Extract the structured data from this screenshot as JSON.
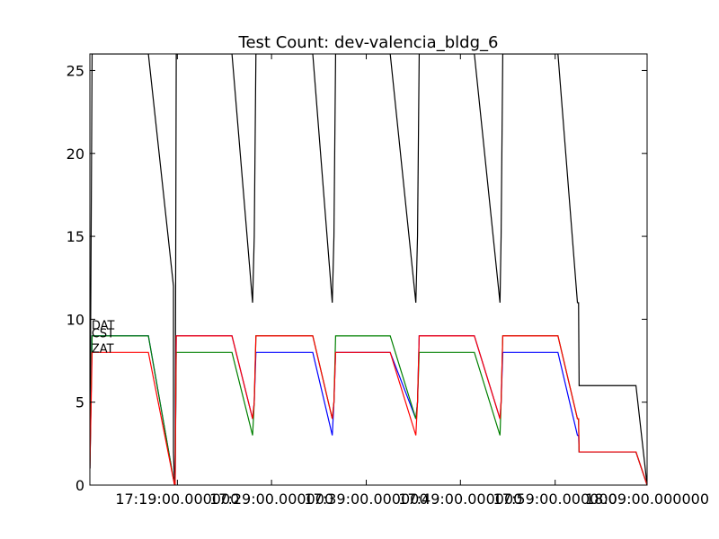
{
  "chart_data": {
    "type": "line",
    "title": "Test Count: dev-valencia_bldg_6",
    "xlabel": "",
    "ylabel": "",
    "xlim": [
      0,
      1
    ],
    "ylim": [
      0,
      26
    ],
    "yticks": [
      0,
      5,
      10,
      15,
      20,
      25
    ],
    "xtick_positions": [
      0.157,
      0.326,
      0.496,
      0.665,
      0.835,
      1.0
    ],
    "xtick_labels": [
      "17:19:00.000000",
      "17:29:00.000000",
      "17:39:00.000000",
      "17:49:00.000000",
      "17:59:00.000000",
      "18:09:00.000000"
    ],
    "grid": false,
    "annotations": [
      {
        "text": "DAT",
        "x": 0.003,
        "y": 9.4
      },
      {
        "text": "CST",
        "x": 0.003,
        "y": 8.9
      },
      {
        "text": "ZAT",
        "x": 0.003,
        "y": 8.0
      }
    ],
    "series": [
      {
        "color": "#000000",
        "points": [
          [
            0,
            1
          ],
          [
            0.004,
            26
          ],
          [
            0.105,
            26
          ],
          [
            0.15,
            12
          ],
          [
            0.15,
            2
          ],
          [
            0.152,
            0
          ],
          [
            0.153,
            0
          ],
          [
            0.155,
            26
          ],
          [
            0.255,
            26
          ],
          [
            0.292,
            11
          ],
          [
            0.295,
            15
          ],
          [
            0.298,
            26
          ],
          [
            0.4,
            26
          ],
          [
            0.435,
            11
          ],
          [
            0.438,
            15
          ],
          [
            0.441,
            26
          ],
          [
            0.539,
            26
          ],
          [
            0.585,
            11
          ],
          [
            0.588,
            15
          ],
          [
            0.591,
            26
          ],
          [
            0.69,
            26
          ],
          [
            0.736,
            11
          ],
          [
            0.738,
            15
          ],
          [
            0.741,
            26
          ],
          [
            0.84,
            26
          ],
          [
            0.875,
            11
          ],
          [
            0.877,
            11
          ],
          [
            0.878,
            6
          ],
          [
            0.98,
            6
          ],
          [
            1.0,
            0
          ]
        ]
      },
      {
        "color": "#0000ff",
        "points": [
          [
            0,
            1
          ],
          [
            0.004,
            9
          ],
          [
            0.105,
            9
          ],
          [
            0.152,
            0
          ],
          [
            0.153,
            0
          ],
          [
            0.155,
            9
          ],
          [
            0.255,
            9
          ],
          [
            0.292,
            4
          ],
          [
            0.295,
            5
          ],
          [
            0.298,
            8
          ],
          [
            0.4,
            8
          ],
          [
            0.435,
            3
          ],
          [
            0.438,
            5
          ],
          [
            0.441,
            8
          ],
          [
            0.539,
            8
          ],
          [
            0.585,
            4
          ],
          [
            0.588,
            5
          ],
          [
            0.591,
            9
          ],
          [
            0.69,
            9
          ],
          [
            0.736,
            4
          ],
          [
            0.738,
            5
          ],
          [
            0.741,
            8
          ],
          [
            0.84,
            8
          ],
          [
            0.875,
            3
          ],
          [
            0.877,
            3
          ],
          [
            0.878,
            2
          ],
          [
            0.98,
            2
          ],
          [
            1.0,
            0
          ]
        ]
      },
      {
        "color": "#008000",
        "points": [
          [
            0,
            1
          ],
          [
            0.004,
            9
          ],
          [
            0.105,
            9
          ],
          [
            0.152,
            0
          ],
          [
            0.153,
            0
          ],
          [
            0.155,
            8
          ],
          [
            0.255,
            8
          ],
          [
            0.292,
            3
          ],
          [
            0.295,
            5
          ],
          [
            0.298,
            9
          ],
          [
            0.4,
            9
          ],
          [
            0.435,
            4
          ],
          [
            0.438,
            5
          ],
          [
            0.441,
            9
          ],
          [
            0.539,
            9
          ],
          [
            0.585,
            4
          ],
          [
            0.588,
            5
          ],
          [
            0.591,
            8
          ],
          [
            0.69,
            8
          ],
          [
            0.736,
            3
          ],
          [
            0.738,
            5
          ],
          [
            0.741,
            9
          ],
          [
            0.84,
            9
          ],
          [
            0.875,
            4
          ],
          [
            0.877,
            4
          ],
          [
            0.878,
            2
          ],
          [
            0.98,
            2
          ],
          [
            1.0,
            0
          ]
        ]
      },
      {
        "color": "#ff0000",
        "points": [
          [
            0,
            1
          ],
          [
            0.004,
            8
          ],
          [
            0.105,
            8
          ],
          [
            0.152,
            0
          ],
          [
            0.153,
            0
          ],
          [
            0.155,
            9
          ],
          [
            0.255,
            9
          ],
          [
            0.292,
            4
          ],
          [
            0.295,
            5
          ],
          [
            0.298,
            9
          ],
          [
            0.4,
            9
          ],
          [
            0.435,
            4
          ],
          [
            0.438,
            5
          ],
          [
            0.441,
            8
          ],
          [
            0.539,
            8
          ],
          [
            0.585,
            3
          ],
          [
            0.588,
            5
          ],
          [
            0.591,
            9
          ],
          [
            0.69,
            9
          ],
          [
            0.736,
            4
          ],
          [
            0.738,
            5
          ],
          [
            0.741,
            9
          ],
          [
            0.84,
            9
          ],
          [
            0.875,
            4
          ],
          [
            0.877,
            4
          ],
          [
            0.878,
            2
          ],
          [
            0.98,
            2
          ],
          [
            1.0,
            0
          ]
        ]
      }
    ]
  }
}
